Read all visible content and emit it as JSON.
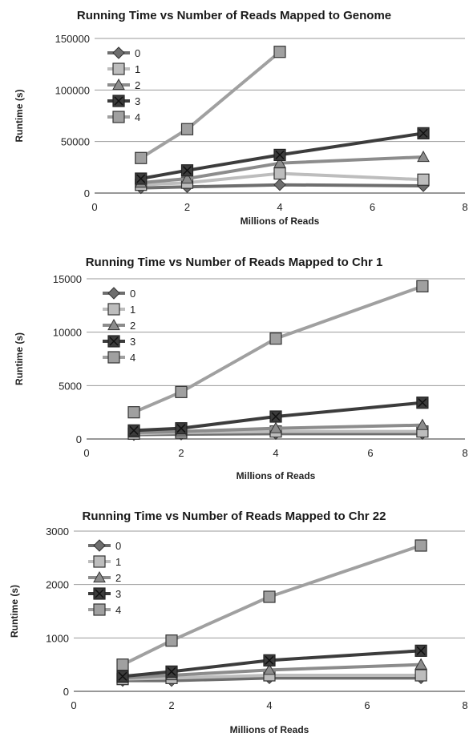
{
  "chart_data": [
    {
      "type": "line",
      "title": "Running Time vs Number of Reads Mapped to Genome",
      "xlabel": "Millions of Reads",
      "ylabel": "Runtime (s)",
      "xlim": [
        0,
        8
      ],
      "ylim": [
        0,
        150000
      ],
      "xticks": [
        "0",
        "2",
        "4",
        "6",
        "8"
      ],
      "yticks": [
        "0",
        "50000",
        "100000",
        "150000"
      ],
      "grid": "horizontal",
      "legend_position": "top-left",
      "series": [
        {
          "name": "0",
          "marker": "diamond",
          "color": "#6e6e6e",
          "x": [
            1,
            2,
            4,
            7.1
          ],
          "y": [
            5000,
            6000,
            8000,
            7000
          ]
        },
        {
          "name": "1",
          "marker": "square",
          "color": "#bdbdbd",
          "x": [
            1,
            2,
            4,
            7.1
          ],
          "y": [
            8000,
            10000,
            19000,
            13000
          ]
        },
        {
          "name": "2",
          "marker": "triangle",
          "color": "#8c8c8c",
          "x": [
            1,
            2,
            4,
            7.1
          ],
          "y": [
            10000,
            14000,
            29000,
            35000
          ]
        },
        {
          "name": "3",
          "marker": "x",
          "color": "#3c3c3c",
          "x": [
            1,
            2,
            4,
            7.1
          ],
          "y": [
            14000,
            22000,
            37000,
            58000
          ]
        },
        {
          "name": "4",
          "marker": "square",
          "color": "#a0a0a0",
          "x": [
            1,
            2,
            4
          ],
          "y": [
            34000,
            62000,
            137000
          ]
        }
      ]
    },
    {
      "type": "line",
      "title": "Running Time vs Number of Reads Mapped to Chr 1",
      "xlabel": "Millions of Reads",
      "ylabel": "Runtime (s)",
      "xlim": [
        0,
        8
      ],
      "ylim": [
        0,
        15000
      ],
      "xticks": [
        "0",
        "2",
        "4",
        "6",
        "8"
      ],
      "yticks": [
        "0",
        "5000",
        "10000",
        "15000"
      ],
      "grid": "horizontal",
      "legend_position": "top-left",
      "series": [
        {
          "name": "0",
          "marker": "diamond",
          "color": "#6e6e6e",
          "x": [
            1,
            2,
            4,
            7.1
          ],
          "y": [
            400,
            450,
            500,
            500
          ]
        },
        {
          "name": "1",
          "marker": "square",
          "color": "#bdbdbd",
          "x": [
            1,
            2,
            4,
            7.1
          ],
          "y": [
            500,
            600,
            700,
            700
          ]
        },
        {
          "name": "2",
          "marker": "triangle",
          "color": "#8c8c8c",
          "x": [
            1,
            2,
            4,
            7.1
          ],
          "y": [
            600,
            700,
            1000,
            1300
          ]
        },
        {
          "name": "3",
          "marker": "x",
          "color": "#3c3c3c",
          "x": [
            1,
            2,
            4,
            7.1
          ],
          "y": [
            800,
            1000,
            2100,
            3400
          ]
        },
        {
          "name": "4",
          "marker": "square",
          "color": "#a0a0a0",
          "x": [
            1,
            2,
            4,
            7.1
          ],
          "y": [
            2500,
            4400,
            9400,
            14300
          ]
        }
      ]
    },
    {
      "type": "line",
      "title": "Running Time vs Number of Reads Mapped to Chr 22",
      "xlabel": "Millions of Reads",
      "ylabel": "Runtime (s)",
      "xlim": [
        0,
        8
      ],
      "ylim": [
        0,
        3000
      ],
      "xticks": [
        "0",
        "2",
        "4",
        "6",
        "8"
      ],
      "yticks": [
        "0",
        "1000",
        "2000",
        "3000"
      ],
      "grid": "horizontal",
      "legend_position": "top-left",
      "series": [
        {
          "name": "0",
          "marker": "diamond",
          "color": "#6e6e6e",
          "x": [
            1,
            2,
            4,
            7.1
          ],
          "y": [
            200,
            200,
            250,
            250
          ]
        },
        {
          "name": "1",
          "marker": "square",
          "color": "#bdbdbd",
          "x": [
            1,
            2,
            4,
            7.1
          ],
          "y": [
            230,
            250,
            300,
            300
          ]
        },
        {
          "name": "2",
          "marker": "triangle",
          "color": "#8c8c8c",
          "x": [
            1,
            2,
            4,
            7.1
          ],
          "y": [
            250,
            300,
            400,
            500
          ]
        },
        {
          "name": "3",
          "marker": "x",
          "color": "#3c3c3c",
          "x": [
            1,
            2,
            4,
            7.1
          ],
          "y": [
            280,
            370,
            580,
            760
          ]
        },
        {
          "name": "4",
          "marker": "square",
          "color": "#a0a0a0",
          "x": [
            1,
            2,
            4,
            7.1
          ],
          "y": [
            500,
            950,
            1770,
            2730
          ]
        }
      ]
    }
  ]
}
